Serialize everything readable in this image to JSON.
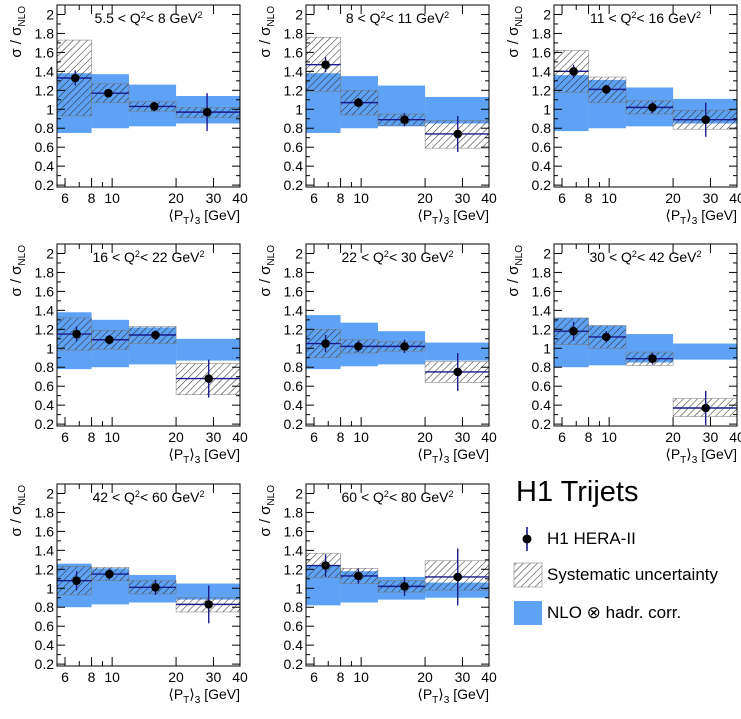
{
  "style": {
    "nlo_color": "#5da2f4",
    "data_color": "#000000",
    "errorbar_color": "#1a1a8c",
    "hatch_color": "#333333"
  },
  "x_label": "⟨P_T⟩_3 [GeV]",
  "y_label": "σ / σ_NLO",
  "bin_edges": [
    5.5,
    8,
    12,
    20,
    40
  ],
  "legend": {
    "title": "H1 Trijets",
    "items": [
      {
        "label": "H1 HERA-II",
        "kind": "data"
      },
      {
        "label": "Systematic uncertainty",
        "kind": "hatch"
      },
      {
        "label": "NLO ⊗ hadr. corr.",
        "kind": "band"
      }
    ]
  },
  "chart_data": [
    {
      "type": "scatter",
      "title": "5.5 < Q² < 8 GeV²",
      "title_parts": {
        "lo": "5.5",
        "hi": "8"
      },
      "xlabel": "⟨P_T⟩_3 [GeV]",
      "ylabel": "σ / σ_NLO",
      "xscale": "log",
      "xlim": [
        5.5,
        40
      ],
      "ylim": [
        0.18,
        2.1
      ],
      "xticks": [
        6,
        8,
        10,
        20,
        30,
        40
      ],
      "yticks": [
        0.2,
        0.4,
        0.6,
        0.8,
        1,
        1.2,
        1.4,
        1.6,
        1.8,
        2
      ],
      "points": [
        {
          "x": 6.7,
          "y": 1.33,
          "err": 0.08,
          "sys": [
            0.93,
            1.73
          ],
          "nlo": [
            0.75,
            1.38
          ]
        },
        {
          "x": 9.6,
          "y": 1.17,
          "err": 0.04,
          "sys": [
            1.07,
            1.27
          ],
          "nlo": [
            0.8,
            1.37
          ]
        },
        {
          "x": 15.8,
          "y": 1.03,
          "err": 0.05,
          "sys": [
            0.98,
            1.08
          ],
          "nlo": [
            0.82,
            1.26
          ]
        },
        {
          "x": 28.0,
          "y": 0.97,
          "err": 0.2,
          "sys": [
            0.91,
            1.02
          ],
          "nlo": [
            0.85,
            1.14
          ]
        }
      ]
    },
    {
      "type": "scatter",
      "title": "8 < Q² < 11 GeV²",
      "title_parts": {
        "lo": "8",
        "hi": "11"
      },
      "xlabel": "⟨P_T⟩_3 [GeV]",
      "ylabel": "σ / σ_NLO",
      "xscale": "log",
      "xlim": [
        5.5,
        40
      ],
      "ylim": [
        0.18,
        2.1
      ],
      "xticks": [
        6,
        8,
        10,
        20,
        30,
        40
      ],
      "yticks": [
        0.2,
        0.4,
        0.6,
        0.8,
        1,
        1.2,
        1.4,
        1.6,
        1.8,
        2
      ],
      "points": [
        {
          "x": 6.8,
          "y": 1.47,
          "err": 0.08,
          "sys": [
            1.19,
            1.76
          ],
          "nlo": [
            0.75,
            1.38
          ]
        },
        {
          "x": 9.7,
          "y": 1.07,
          "err": 0.05,
          "sys": [
            0.94,
            1.2
          ],
          "nlo": [
            0.8,
            1.35
          ]
        },
        {
          "x": 16.0,
          "y": 0.89,
          "err": 0.07,
          "sys": [
            0.83,
            0.95
          ],
          "nlo": [
            0.82,
            1.25
          ]
        },
        {
          "x": 28.5,
          "y": 0.74,
          "err": 0.19,
          "sys": [
            0.59,
            0.88
          ],
          "nlo": [
            0.85,
            1.13
          ]
        }
      ]
    },
    {
      "type": "scatter",
      "title": "11 < Q² < 16 GeV²",
      "title_parts": {
        "lo": "11",
        "hi": "16"
      },
      "xlabel": "⟨P_T⟩_3 [GeV]",
      "ylabel": "σ / σ_NLO",
      "xscale": "log",
      "xlim": [
        5.5,
        40
      ],
      "ylim": [
        0.18,
        2.1
      ],
      "xticks": [
        6,
        8,
        10,
        20,
        30,
        40
      ],
      "yticks": [
        0.2,
        0.4,
        0.6,
        0.8,
        1,
        1.2,
        1.4,
        1.6,
        1.8,
        2
      ],
      "points": [
        {
          "x": 6.8,
          "y": 1.4,
          "err": 0.07,
          "sys": [
            1.18,
            1.62
          ],
          "nlo": [
            0.77,
            1.36
          ]
        },
        {
          "x": 9.7,
          "y": 1.21,
          "err": 0.05,
          "sys": [
            1.07,
            1.34
          ],
          "nlo": [
            0.8,
            1.31
          ]
        },
        {
          "x": 16.0,
          "y": 1.02,
          "err": 0.06,
          "sys": [
            0.95,
            1.09
          ],
          "nlo": [
            0.82,
            1.23
          ]
        },
        {
          "x": 28.5,
          "y": 0.89,
          "err": 0.18,
          "sys": [
            0.79,
            0.99
          ],
          "nlo": [
            0.85,
            1.11
          ]
        }
      ]
    },
    {
      "type": "scatter",
      "title": "16 < Q² < 22 GeV²",
      "title_parts": {
        "lo": "16",
        "hi": "22"
      },
      "xlabel": "⟨P_T⟩_3 [GeV]",
      "ylabel": "σ / σ_NLO",
      "xscale": "log",
      "xlim": [
        5.5,
        40
      ],
      "ylim": [
        0.18,
        2.1
      ],
      "xticks": [
        6,
        8,
        10,
        20,
        30,
        40
      ],
      "yticks": [
        0.2,
        0.4,
        0.6,
        0.8,
        1,
        1.2,
        1.4,
        1.6,
        1.8,
        2
      ],
      "points": [
        {
          "x": 6.8,
          "y": 1.15,
          "err": 0.08,
          "sys": [
            0.98,
            1.32
          ],
          "nlo": [
            0.78,
            1.38
          ]
        },
        {
          "x": 9.7,
          "y": 1.09,
          "err": 0.05,
          "sys": [
            0.99,
            1.19
          ],
          "nlo": [
            0.8,
            1.3
          ]
        },
        {
          "x": 16.0,
          "y": 1.14,
          "err": 0.05,
          "sys": [
            1.05,
            1.23
          ],
          "nlo": [
            0.83,
            1.22
          ]
        },
        {
          "x": 28.5,
          "y": 0.68,
          "err": 0.2,
          "sys": [
            0.51,
            0.84
          ],
          "nlo": [
            0.87,
            1.1
          ]
        }
      ]
    },
    {
      "type": "scatter",
      "title": "22 < Q² < 30 GeV²",
      "title_parts": {
        "lo": "22",
        "hi": "30"
      },
      "xlabel": "⟨P_T⟩_3 [GeV]",
      "ylabel": "σ / σ_NLO",
      "xscale": "log",
      "xlim": [
        5.5,
        40
      ],
      "ylim": [
        0.18,
        2.1
      ],
      "xticks": [
        6,
        8,
        10,
        20,
        30,
        40
      ],
      "yticks": [
        0.2,
        0.4,
        0.6,
        0.8,
        1,
        1.2,
        1.4,
        1.6,
        1.8,
        2
      ],
      "points": [
        {
          "x": 6.8,
          "y": 1.05,
          "err": 0.09,
          "sys": [
            0.9,
            1.2
          ],
          "nlo": [
            0.78,
            1.35
          ]
        },
        {
          "x": 9.7,
          "y": 1.02,
          "err": 0.06,
          "sys": [
            0.95,
            1.09
          ],
          "nlo": [
            0.81,
            1.27
          ]
        },
        {
          "x": 16.0,
          "y": 1.02,
          "err": 0.07,
          "sys": [
            0.97,
            1.07
          ],
          "nlo": [
            0.83,
            1.18
          ]
        },
        {
          "x": 28.5,
          "y": 0.75,
          "err": 0.2,
          "sys": [
            0.64,
            0.86
          ],
          "nlo": [
            0.87,
            1.06
          ]
        }
      ]
    },
    {
      "type": "scatter",
      "title": "30 < Q² < 42 GeV²",
      "title_parts": {
        "lo": "30",
        "hi": "42"
      },
      "xlabel": "⟨P_T⟩_3 [GeV]",
      "ylabel": "σ / σ_NLO",
      "xscale": "log",
      "xlim": [
        5.5,
        40
      ],
      "ylim": [
        0.18,
        2.1
      ],
      "xticks": [
        6,
        8,
        10,
        20,
        30,
        40
      ],
      "yticks": [
        0.2,
        0.4,
        0.6,
        0.8,
        1,
        1.2,
        1.4,
        1.6,
        1.8,
        2
      ],
      "points": [
        {
          "x": 6.8,
          "y": 1.18,
          "err": 0.1,
          "sys": [
            1.04,
            1.32
          ],
          "nlo": [
            0.8,
            1.32
          ]
        },
        {
          "x": 9.7,
          "y": 1.12,
          "err": 0.06,
          "sys": [
            1.0,
            1.24
          ],
          "nlo": [
            0.82,
            1.24
          ]
        },
        {
          "x": 16.0,
          "y": 0.89,
          "err": 0.06,
          "sys": [
            0.82,
            0.96
          ],
          "nlo": [
            0.85,
            1.15
          ]
        },
        {
          "x": 28.5,
          "y": 0.37,
          "err": 0.18,
          "sys": [
            0.28,
            0.47
          ],
          "nlo": [
            0.88,
            1.05
          ]
        }
      ]
    },
    {
      "type": "scatter",
      "title": "42 < Q² < 60 GeV²",
      "title_parts": {
        "lo": "42",
        "hi": "60"
      },
      "xlabel": "⟨P_T⟩_3 [GeV]",
      "ylabel": "σ / σ_NLO",
      "xscale": "log",
      "xlim": [
        5.5,
        40
      ],
      "ylim": [
        0.18,
        2.1
      ],
      "xticks": [
        6,
        8,
        10,
        20,
        30,
        40
      ],
      "yticks": [
        0.2,
        0.4,
        0.6,
        0.8,
        1,
        1.2,
        1.4,
        1.6,
        1.8,
        2
      ],
      "points": [
        {
          "x": 6.8,
          "y": 1.08,
          "err": 0.1,
          "sys": [
            0.93,
            1.23
          ],
          "nlo": [
            0.8,
            1.26
          ]
        },
        {
          "x": 9.7,
          "y": 1.15,
          "err": 0.06,
          "sys": [
            1.08,
            1.22
          ],
          "nlo": [
            0.83,
            1.21
          ]
        },
        {
          "x": 16.0,
          "y": 1.01,
          "err": 0.08,
          "sys": [
            0.94,
            1.08
          ],
          "nlo": [
            0.85,
            1.14
          ]
        },
        {
          "x": 28.5,
          "y": 0.83,
          "err": 0.2,
          "sys": [
            0.75,
            0.9
          ],
          "nlo": [
            0.88,
            1.05
          ]
        }
      ]
    },
    {
      "type": "scatter",
      "title": "60 < Q² < 80 GeV²",
      "title_parts": {
        "lo": "60",
        "hi": "80"
      },
      "xlabel": "⟨P_T⟩_3 [GeV]",
      "ylabel": "σ / σ_NLO",
      "xscale": "log",
      "xlim": [
        5.5,
        40
      ],
      "ylim": [
        0.18,
        2.1
      ],
      "xticks": [
        6,
        8,
        10,
        20,
        30,
        40
      ],
      "yticks": [
        0.2,
        0.4,
        0.6,
        0.8,
        1,
        1.2,
        1.4,
        1.6,
        1.8,
        2
      ],
      "points": [
        {
          "x": 6.8,
          "y": 1.24,
          "err": 0.12,
          "sys": [
            1.11,
            1.37
          ],
          "nlo": [
            0.82,
            1.24
          ]
        },
        {
          "x": 9.7,
          "y": 1.13,
          "err": 0.08,
          "sys": [
            1.05,
            1.21
          ],
          "nlo": [
            0.85,
            1.18
          ]
        },
        {
          "x": 16.0,
          "y": 1.02,
          "err": 0.1,
          "sys": [
            0.96,
            1.08
          ],
          "nlo": [
            0.88,
            1.12
          ]
        },
        {
          "x": 28.5,
          "y": 1.12,
          "err": 0.3,
          "sys": [
            0.98,
            1.29
          ],
          "nlo": [
            0.9,
            1.06
          ]
        }
      ]
    }
  ]
}
